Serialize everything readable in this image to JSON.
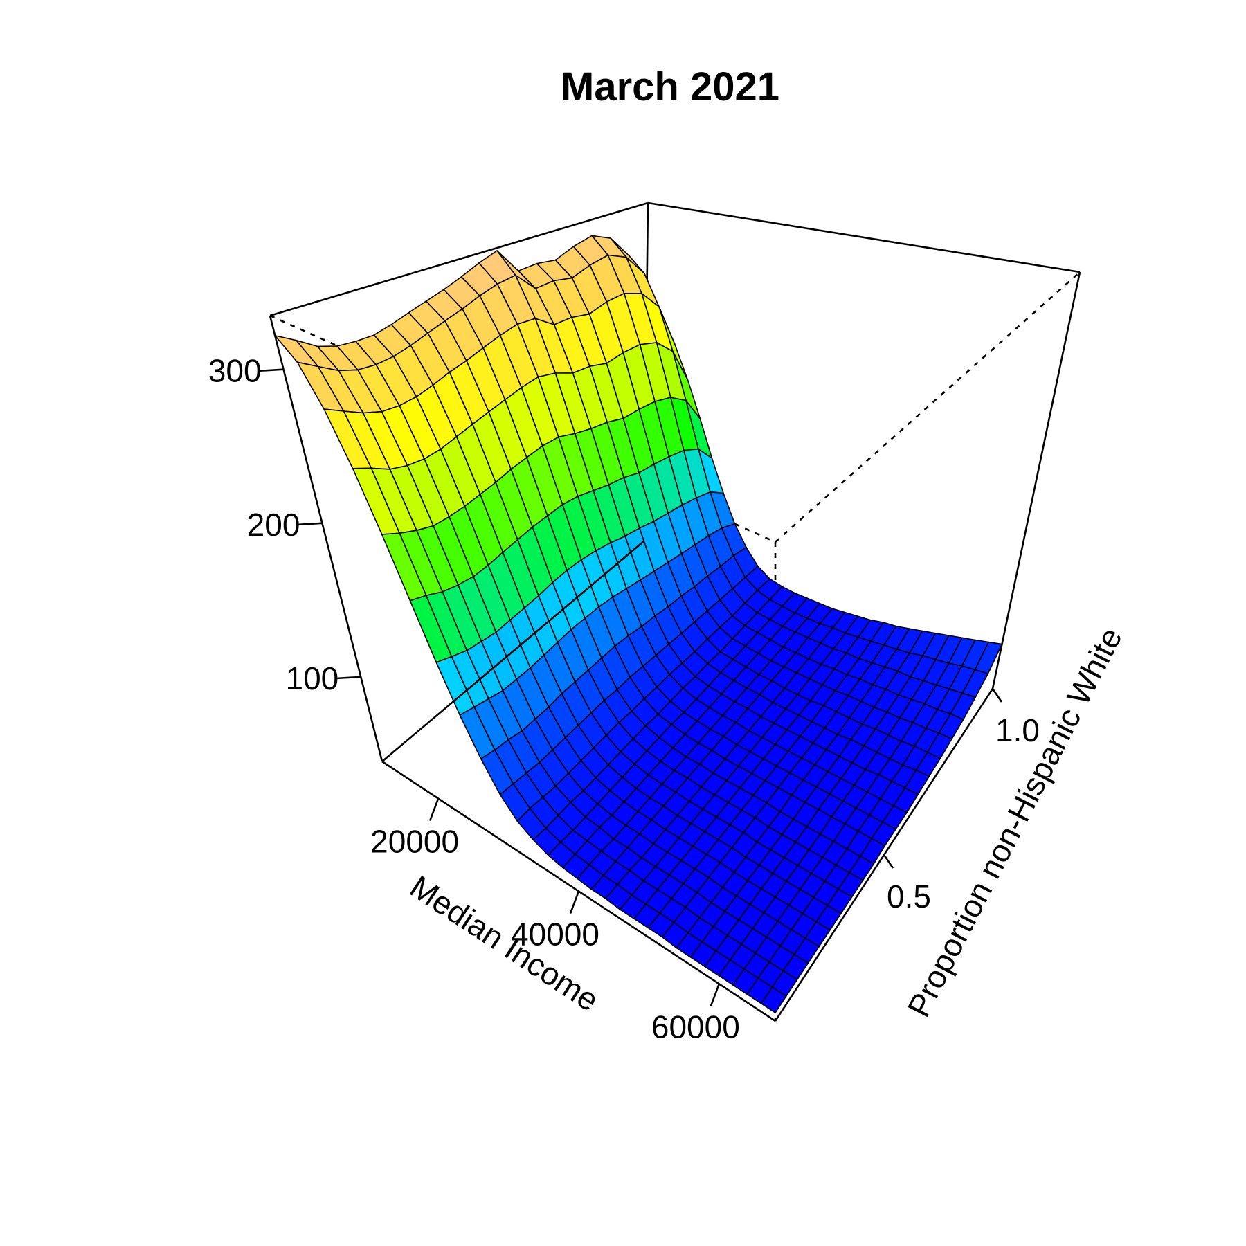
{
  "chart_data": {
    "type": "surface",
    "title": "March 2021",
    "xlabel": "Median Income",
    "ylabel": "Proportion non-Hispanic White",
    "zlabel": "",
    "x_ticks": [
      {
        "value": 20000,
        "label": "20000"
      },
      {
        "value": 40000,
        "label": "40000"
      },
      {
        "value": 60000,
        "label": "60000"
      }
    ],
    "y_ticks": [
      {
        "value": 0.5,
        "label": "0.5"
      },
      {
        "value": 1.0,
        "label": "1.0"
      }
    ],
    "z_ticks": [
      {
        "value": 100,
        "label": "100"
      },
      {
        "value": 200,
        "label": "200"
      },
      {
        "value": 300,
        "label": "300"
      }
    ],
    "xlim": [
      12000,
      68000
    ],
    "ylim": [
      0.0,
      1.0
    ],
    "zlim": [
      45,
      335
    ],
    "grid_x": [
      12000,
      14000,
      16000,
      18000,
      20000,
      22000,
      24000,
      26000,
      28000,
      30000,
      32000,
      34000,
      36000,
      38000,
      40000,
      42000,
      44000,
      46000,
      48000,
      50000,
      52000,
      54000,
      56000,
      58000,
      60000,
      62000,
      64000,
      66000,
      68000
    ],
    "grid_y": [
      0.0,
      0.05,
      0.1,
      0.15,
      0.2,
      0.25,
      0.3,
      0.35,
      0.4,
      0.45,
      0.5,
      0.55,
      0.6,
      0.65,
      0.7,
      0.75,
      0.8,
      0.85,
      0.9,
      0.95,
      1.0
    ],
    "z": [
      [
        322,
        315,
        307,
        303,
        302,
        302,
        305,
        309,
        313,
        317,
        322,
        328,
        333,
        313,
        314,
        312,
        318,
        322,
        315,
        295,
        250
      ],
      [
        310,
        303,
        296,
        292,
        291,
        292,
        295,
        299,
        303,
        307,
        312,
        316,
        318,
        303,
        304,
        301,
        306,
        309,
        302,
        283,
        241
      ],
      [
        285,
        279,
        273,
        269,
        268,
        269,
        272,
        276,
        279,
        283,
        287,
        290,
        289,
        279,
        279,
        276,
        280,
        281,
        275,
        258,
        220
      ],
      [
        252,
        247,
        241,
        238,
        237,
        238,
        241,
        244,
        247,
        250,
        253,
        255,
        252,
        246,
        245,
        241,
        243,
        243,
        238,
        224,
        193
      ],
      [
        215,
        210,
        206,
        203,
        203,
        204,
        206,
        208,
        211,
        213,
        215,
        215,
        211,
        208,
        206,
        202,
        202,
        201,
        197,
        187,
        164
      ],
      [
        178,
        175,
        171,
        169,
        168,
        169,
        171,
        173,
        175,
        176,
        177,
        176,
        173,
        170,
        168,
        164,
        163,
        161,
        158,
        151,
        135
      ],
      [
        144,
        141,
        138,
        137,
        136,
        137,
        138,
        139,
        141,
        142,
        142,
        141,
        139,
        136,
        134,
        131,
        129,
        127,
        124,
        120,
        110
      ],
      [
        116,
        114,
        112,
        110,
        110,
        110,
        111,
        112,
        113,
        113,
        113,
        112,
        110,
        108,
        106,
        104,
        102,
        100,
        98,
        95,
        89
      ],
      [
        94,
        92,
        91,
        89,
        89,
        89,
        90,
        90,
        90,
        90,
        90,
        89,
        87,
        86,
        84,
        83,
        81,
        80,
        78,
        77,
        74
      ],
      [
        77,
        76,
        75,
        74,
        74,
        74,
        74,
        74,
        74,
        73,
        73,
        72,
        71,
        70,
        69,
        68,
        67,
        66,
        65,
        64,
        63
      ],
      [
        66,
        66,
        65,
        64,
        64,
        64,
        64,
        64,
        64,
        63,
        63,
        62,
        62,
        61,
        60,
        60,
        59,
        58,
        58,
        58,
        57
      ],
      [
        60,
        59,
        59,
        59,
        58,
        58,
        58,
        58,
        58,
        58,
        57,
        57,
        57,
        56,
        56,
        55,
        55,
        55,
        55,
        55,
        55
      ],
      [
        56,
        56,
        55,
        55,
        55,
        55,
        55,
        55,
        55,
        55,
        55,
        54,
        54,
        54,
        54,
        54,
        54,
        54,
        54,
        54,
        54
      ],
      [
        54,
        54,
        54,
        54,
        53,
        53,
        53,
        53,
        53,
        53,
        53,
        53,
        53,
        53,
        53,
        53,
        53,
        53,
        53,
        53,
        54
      ],
      [
        53,
        53,
        53,
        52,
        52,
        52,
        52,
        52,
        52,
        52,
        52,
        52,
        52,
        52,
        52,
        52,
        52,
        52,
        53,
        53,
        54
      ],
      [
        52,
        52,
        52,
        52,
        52,
        52,
        52,
        52,
        52,
        52,
        52,
        52,
        52,
        52,
        52,
        52,
        52,
        52,
        53,
        53,
        54
      ],
      [
        52,
        52,
        52,
        51,
        51,
        51,
        51,
        51,
        51,
        51,
        51,
        51,
        51,
        51,
        51,
        51,
        52,
        52,
        53,
        54,
        55
      ],
      [
        51,
        51,
        51,
        51,
        51,
        51,
        51,
        51,
        51,
        51,
        51,
        51,
        51,
        51,
        51,
        51,
        52,
        52,
        53,
        54,
        56
      ],
      [
        51,
        51,
        51,
        51,
        51,
        51,
        51,
        51,
        51,
        51,
        51,
        51,
        51,
        51,
        51,
        51,
        52,
        53,
        54,
        55,
        57
      ],
      [
        51,
        51,
        51,
        51,
        51,
        51,
        51,
        51,
        51,
        51,
        51,
        51,
        51,
        51,
        51,
        52,
        52,
        53,
        54,
        56,
        59
      ],
      [
        51,
        51,
        51,
        51,
        51,
        51,
        51,
        51,
        51,
        51,
        51,
        51,
        51,
        51,
        51,
        52,
        53,
        54,
        55,
        57,
        60
      ],
      [
        50,
        50,
        50,
        50,
        50,
        50,
        50,
        50,
        50,
        50,
        51,
        51,
        51,
        51,
        51,
        52,
        53,
        54,
        56,
        58,
        62
      ],
      [
        50,
        50,
        50,
        50,
        50,
        50,
        50,
        50,
        50,
        50,
        51,
        51,
        51,
        51,
        52,
        52,
        53,
        55,
        57,
        59,
        64
      ],
      [
        50,
        50,
        50,
        50,
        50,
        50,
        50,
        50,
        50,
        50,
        51,
        51,
        51,
        51,
        52,
        53,
        54,
        55,
        57,
        61,
        66
      ],
      [
        50,
        50,
        50,
        50,
        50,
        50,
        50,
        50,
        50,
        50,
        51,
        51,
        51,
        51,
        52,
        53,
        54,
        56,
        58,
        62,
        68
      ],
      [
        50,
        50,
        50,
        50,
        50,
        50,
        50,
        50,
        50,
        50,
        51,
        51,
        51,
        52,
        52,
        53,
        55,
        57,
        59,
        63,
        70
      ],
      [
        50,
        50,
        50,
        50,
        50,
        50,
        50,
        50,
        50,
        50,
        51,
        51,
        51,
        52,
        52,
        54,
        55,
        57,
        60,
        65,
        72
      ],
      [
        50,
        50,
        50,
        50,
        50,
        50,
        50,
        50,
        50,
        50,
        51,
        51,
        51,
        52,
        53,
        54,
        56,
        58,
        61,
        66,
        74
      ],
      [
        50,
        50,
        50,
        50,
        50,
        50,
        50,
        50,
        50,
        50,
        51,
        51,
        51,
        52,
        53,
        54,
        56,
        58,
        62,
        67,
        76
      ]
    ],
    "colormap": [
      "#0000ff",
      "#0055ff",
      "#00d5ff",
      "#00ff00",
      "#aaff00",
      "#ffff00",
      "#ffd84d",
      "#ffc880"
    ],
    "grid": false,
    "legend": "none"
  }
}
